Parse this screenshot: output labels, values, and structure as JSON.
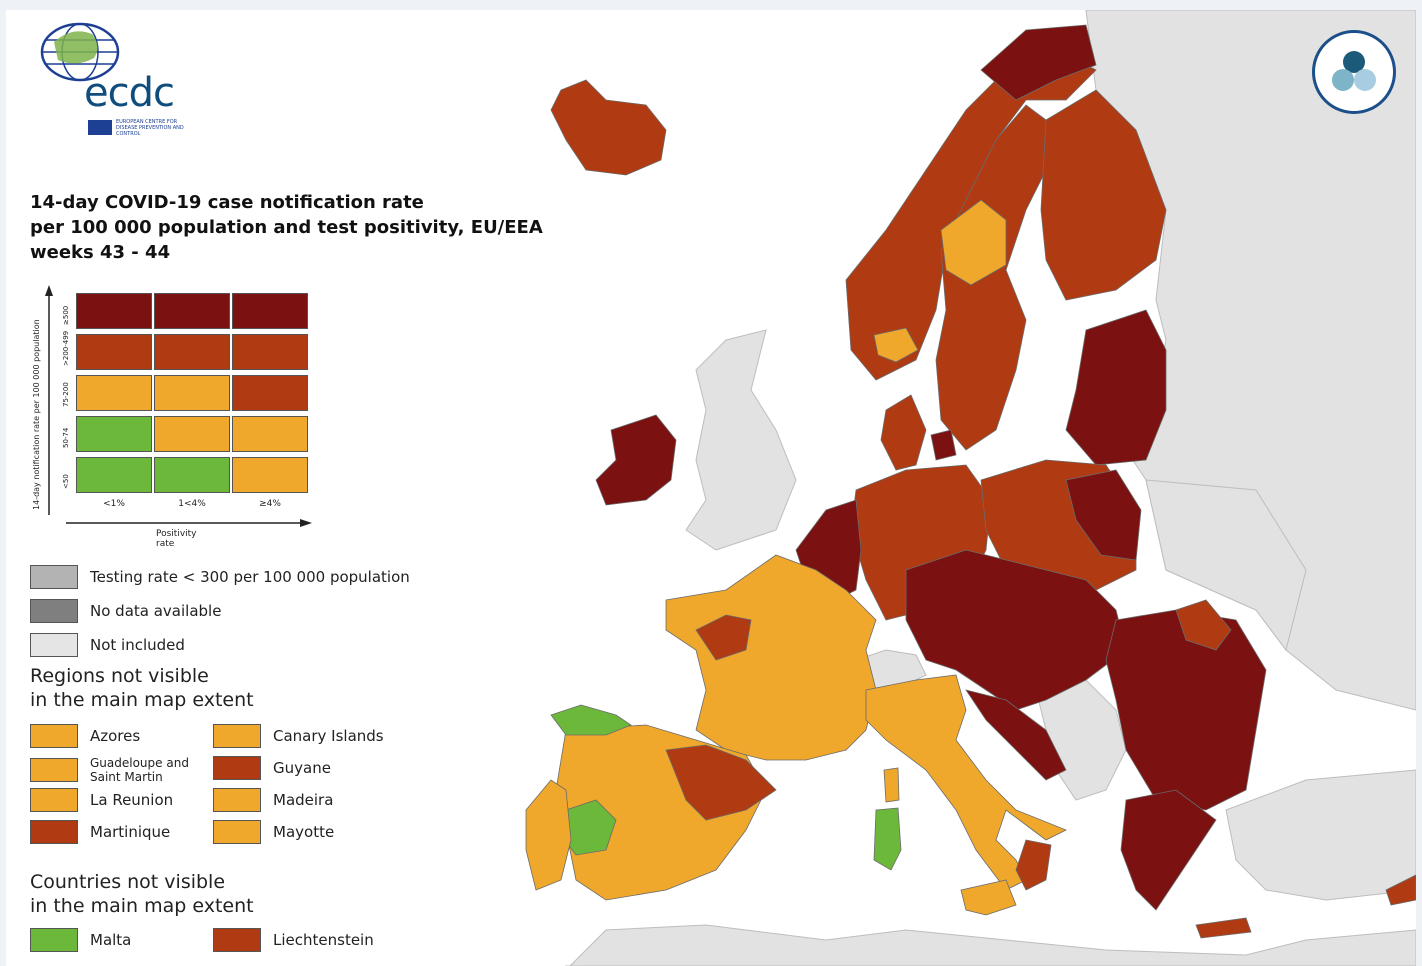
{
  "title": {
    "line1": "14-day COVID-19 case notification rate",
    "line2": "per 100 000 population and test positivity, EU/EEA",
    "line3": "weeks 43 - 44"
  },
  "logo": {
    "text": "ecdc",
    "subtitle": "European Centre for Disease Prevention and Control"
  },
  "matrix": {
    "y_axis_label": "14-day notification rate per 100 000 population",
    "x_axis_label": "Positivity rate",
    "row_labels": [
      "≥500",
      ">200-499",
      "75-200",
      "50-74",
      "<50"
    ],
    "col_labels": [
      "<1%",
      "1<4%",
      "≥4%"
    ],
    "colors": [
      [
        "#7b1111",
        "#7b1111",
        "#7b1111"
      ],
      [
        "#b03a12",
        "#b03a12",
        "#b03a12"
      ],
      [
        "#f0a82c",
        "#f0a82c",
        "#b03a12"
      ],
      [
        "#6cb83a",
        "#f0a82c",
        "#f0a82c"
      ],
      [
        "#6cb83a",
        "#6cb83a",
        "#f0a82c"
      ]
    ]
  },
  "status_legend": [
    {
      "label": "Testing rate < 300 per 100 000 population",
      "color": "#b3b3b3"
    },
    {
      "label": "No data available",
      "color": "#7f7f7f"
    },
    {
      "label": "Not included",
      "color": "#e5e5e5"
    }
  ],
  "regions_heading": "Regions not visible\nin the main map extent",
  "regions_heading_line1": "Regions not visible",
  "regions_heading_line2": "in the main map extent",
  "regions": [
    {
      "label": "Azores",
      "color": "#f0a82c"
    },
    {
      "label": "Guadeloupe and Saint Martin",
      "color": "#f0a82c"
    },
    {
      "label": "La Reunion",
      "color": "#f0a82c"
    },
    {
      "label": "Martinique",
      "color": "#b03a12"
    },
    {
      "label": "Canary Islands",
      "color": "#f0a82c"
    },
    {
      "label": "Guyane",
      "color": "#b03a12"
    },
    {
      "label": "Madeira",
      "color": "#f0a82c"
    },
    {
      "label": "Mayotte",
      "color": "#f0a82c"
    }
  ],
  "countries_heading_line1": "Countries not visible",
  "countries_heading_line2": "in the main map extent",
  "countries": [
    {
      "label": "Malta",
      "color": "#6cb83a"
    },
    {
      "label": "Liechtenstein",
      "color": "#b03a12"
    }
  ],
  "map_colors": {
    "very_high": "#7b1111",
    "high": "#b03a12",
    "medium": "#f0a82c",
    "low": "#6cb83a",
    "not_included": "#e2e2e2",
    "sea": "#ffffff",
    "border": "#6b6b6b"
  },
  "badge": {
    "icon": "three-circles-icon",
    "colors": [
      "#1b5a78",
      "#7eb4c8",
      "#a8cde0"
    ]
  }
}
